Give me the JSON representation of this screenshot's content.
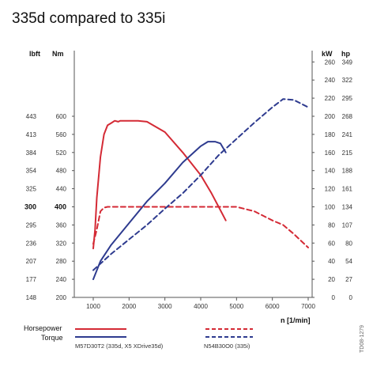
{
  "chart_data": {
    "type": "line",
    "title": "335d compared to 335i",
    "xlabel": "n [1/min]",
    "x_ticks": [
      "1000",
      "2000",
      "3000",
      "4000",
      "5000",
      "6000",
      "7000"
    ],
    "xlim": [
      0,
      7000
    ],
    "left_axis": {
      "units": [
        "lbft",
        "Nm"
      ],
      "nm_ticks": [
        "200",
        "240",
        "280",
        "320",
        "360",
        "400",
        "440",
        "480",
        "520",
        "560",
        "600"
      ],
      "lbft_ticks": [
        "148",
        "177",
        "207",
        "236",
        "295",
        "300",
        "325",
        "354",
        "384",
        "413",
        "443"
      ],
      "ylim": [
        200,
        640
      ]
    },
    "right_axis": {
      "units": [
        "kW",
        "hp"
      ],
      "kw_ticks": [
        "0",
        "20",
        "40",
        "60",
        "80",
        "100",
        "120",
        "140",
        "160",
        "180",
        "200",
        "220",
        "240",
        "260"
      ],
      "hp_ticks": [
        "0",
        "27",
        "54",
        "80",
        "107",
        "134",
        "161",
        "188",
        "215",
        "241",
        "268",
        "295",
        "322",
        "349"
      ],
      "ylim": [
        0,
        260
      ]
    },
    "series": [
      {
        "kind": "torque",
        "axis": "left",
        "color": "#d42a35",
        "dash": false,
        "x": [
          1000,
          1050,
          1100,
          1200,
          1300,
          1400,
          1500,
          1600,
          1700,
          1750,
          2000,
          2250,
          2500,
          3000,
          3500,
          4000,
          4300,
          4500,
          4700
        ],
        "y": [
          308,
          350,
          420,
          510,
          560,
          580,
          585,
          590,
          588,
          590,
          590,
          590,
          588,
          565,
          520,
          470,
          430,
          400,
          370
        ]
      },
      {
        "kind": "power",
        "axis": "right",
        "color": "#2e3b8f",
        "dash": false,
        "x": [
          1000,
          1200,
          1500,
          2000,
          2500,
          3000,
          3500,
          4000,
          4200,
          4400,
          4550,
          4700
        ],
        "y": [
          20,
          40,
          58,
          82,
          106,
          126,
          149,
          167,
          172,
          172,
          170,
          160
        ]
      },
      {
        "kind": "torque",
        "axis": "left",
        "color": "#d42a35",
        "dash": true,
        "x": [
          1000,
          1100,
          1200,
          1300,
          1400,
          1500,
          2000,
          3000,
          4000,
          5000,
          5500,
          6000,
          6300,
          6600,
          7000
        ],
        "y": [
          318,
          350,
          390,
          398,
          400,
          400,
          400,
          400,
          400,
          400,
          390,
          370,
          360,
          340,
          310
        ]
      },
      {
        "kind": "power",
        "axis": "right",
        "color": "#2e3b8f",
        "dash": true,
        "x": [
          1000,
          1500,
          2000,
          2500,
          3000,
          3500,
          4000,
          4500,
          5000,
          5500,
          6000,
          6300,
          6600,
          7000
        ],
        "y": [
          30,
          48,
          64,
          80,
          98,
          115,
          135,
          157,
          175,
          193,
          210,
          219,
          218,
          210
        ]
      }
    ]
  },
  "legend": {
    "horsepower_label": "Horsepower",
    "torque_label": "Torque",
    "diesel_label": "M57D30T2 (335d, X5 XDrive35d)",
    "petrol_label": "N54B30O0 (335i)"
  },
  "figure_code": "TD08-1279",
  "colors": {
    "diesel": "#d42a35",
    "petrol": "#2e3b8f"
  }
}
